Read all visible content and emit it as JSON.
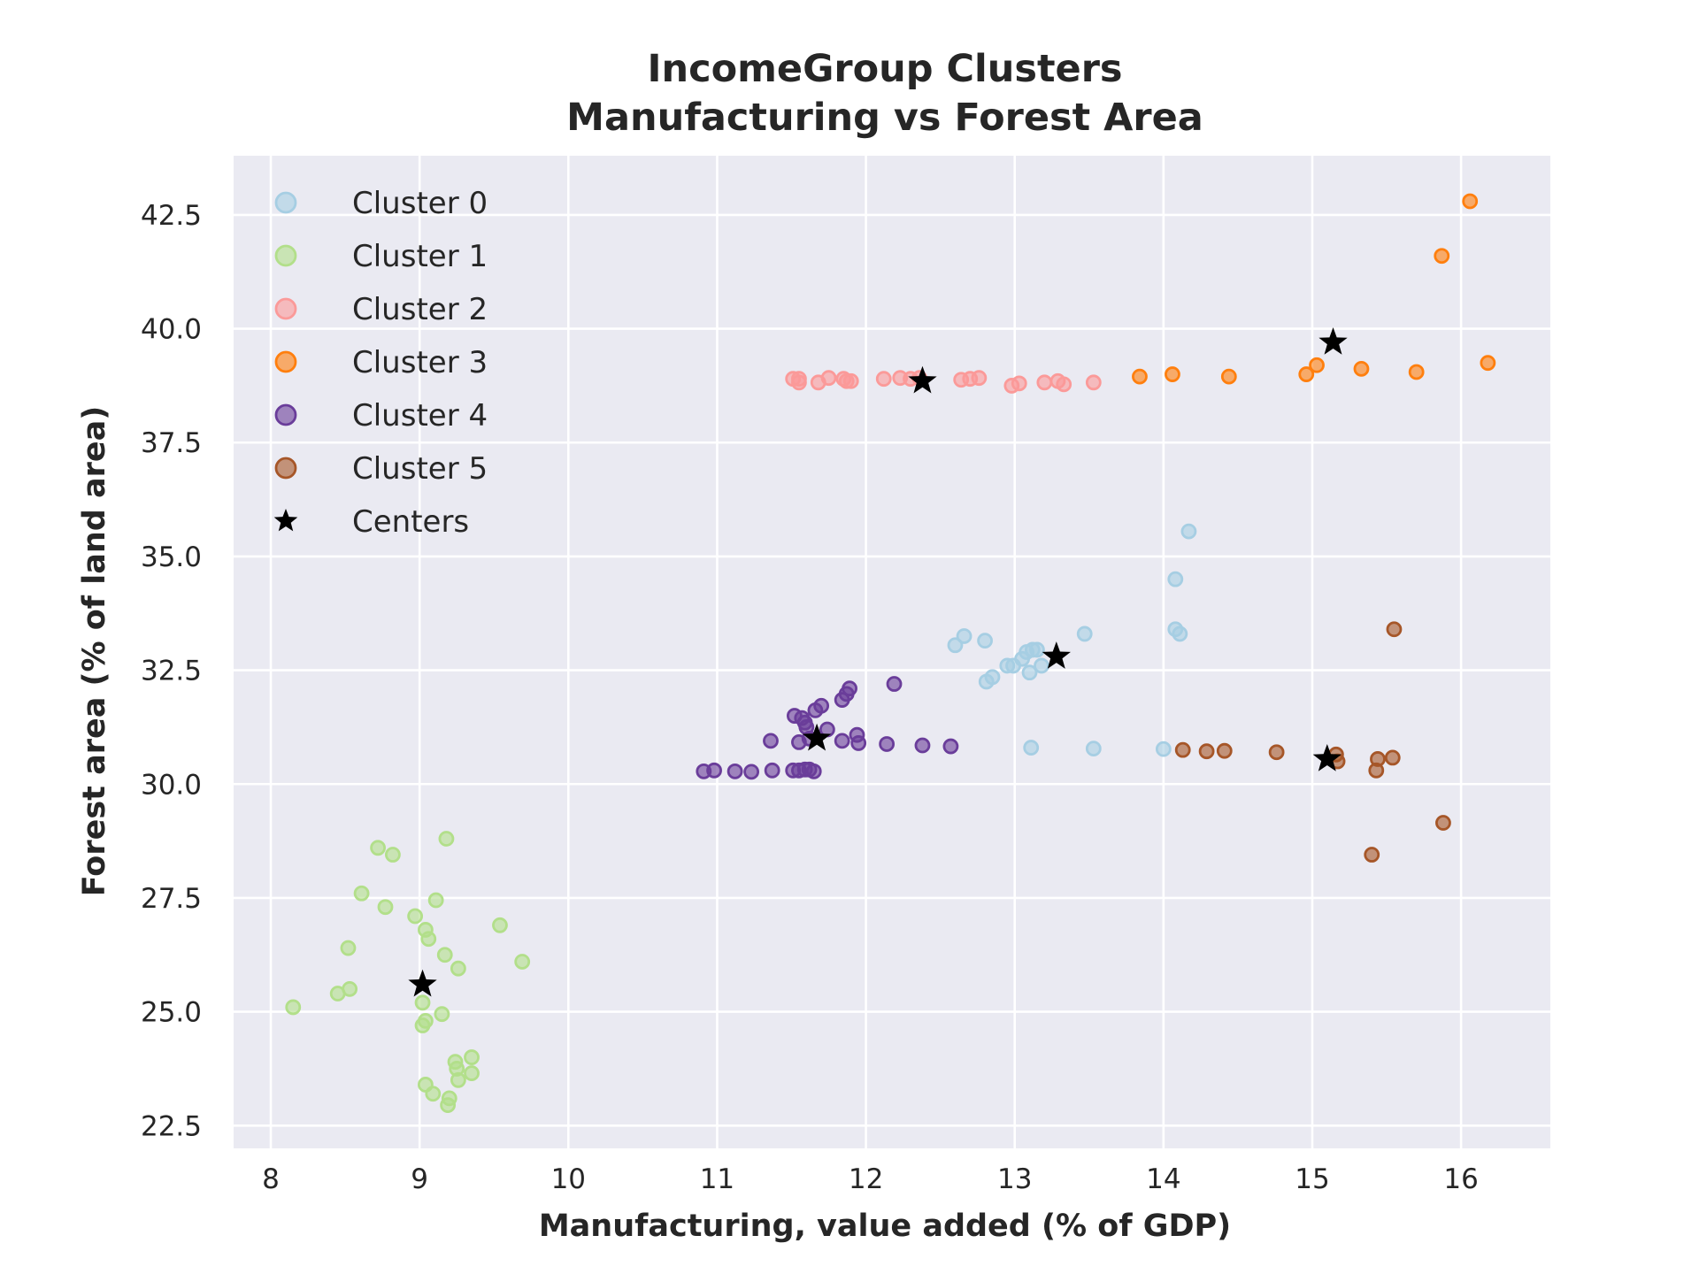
{
  "chart_data": {
    "type": "scatter",
    "title": [
      "IncomeGroup Clusters",
      "Manufacturing vs Forest Area"
    ],
    "xlabel": "Manufacturing, value added (% of GDP)",
    "ylabel": "Forest area (% of land area)",
    "xlim": [
      7.75,
      16.6
    ],
    "ylim": [
      22.0,
      43.8
    ],
    "xticks": [
      8,
      9,
      10,
      11,
      12,
      13,
      14,
      15,
      16
    ],
    "yticks": [
      22.5,
      25.0,
      27.5,
      30.0,
      32.5,
      35.0,
      37.5,
      40.0,
      42.5
    ],
    "xtick_labels": [
      "8",
      "9",
      "10",
      "11",
      "12",
      "13",
      "14",
      "15",
      "16"
    ],
    "ytick_labels": [
      "22.5",
      "25.0",
      "27.5",
      "30.0",
      "32.5",
      "35.0",
      "37.5",
      "40.0",
      "42.5"
    ],
    "grid": true,
    "background": "#eaeaf2",
    "legend_position": "top-left",
    "series": [
      {
        "name": "Cluster 0",
        "color": "#a6cee3",
        "points": [
          [
            12.6,
            33.05
          ],
          [
            12.66,
            33.25
          ],
          [
            12.8,
            33.15
          ],
          [
            12.81,
            32.25
          ],
          [
            12.85,
            32.35
          ],
          [
            12.95,
            32.6
          ],
          [
            12.99,
            32.6
          ],
          [
            13.05,
            32.75
          ],
          [
            13.08,
            32.9
          ],
          [
            13.1,
            32.45
          ],
          [
            13.12,
            32.95
          ],
          [
            13.15,
            32.95
          ],
          [
            13.18,
            32.6
          ],
          [
            13.47,
            33.3
          ],
          [
            14.08,
            33.4
          ],
          [
            14.11,
            33.3
          ],
          [
            14.08,
            34.5
          ],
          [
            14.17,
            35.55
          ],
          [
            13.11,
            30.8
          ],
          [
            13.53,
            30.78
          ],
          [
            14.0,
            30.77
          ]
        ]
      },
      {
        "name": "Cluster 1",
        "color": "#b2df8a",
        "points": [
          [
            8.15,
            25.1
          ],
          [
            8.45,
            25.4
          ],
          [
            8.53,
            25.5
          ],
          [
            8.52,
            26.4
          ],
          [
            8.61,
            27.6
          ],
          [
            8.72,
            28.6
          ],
          [
            8.77,
            27.3
          ],
          [
            8.82,
            28.45
          ],
          [
            8.97,
            27.1
          ],
          [
            9.02,
            25.2
          ],
          [
            9.02,
            24.7
          ],
          [
            9.04,
            24.8
          ],
          [
            9.04,
            26.8
          ],
          [
            9.06,
            26.6
          ],
          [
            9.11,
            27.45
          ],
          [
            9.15,
            24.95
          ],
          [
            9.17,
            26.25
          ],
          [
            9.18,
            28.8
          ],
          [
            9.26,
            25.95
          ],
          [
            9.04,
            23.4
          ],
          [
            9.09,
            23.2
          ],
          [
            9.19,
            22.95
          ],
          [
            9.2,
            23.1
          ],
          [
            9.24,
            23.9
          ],
          [
            9.25,
            23.75
          ],
          [
            9.26,
            23.5
          ],
          [
            9.35,
            24.0
          ],
          [
            9.35,
            23.65
          ],
          [
            9.54,
            26.9
          ],
          [
            9.69,
            26.1
          ]
        ]
      },
      {
        "name": "Cluster 2",
        "color": "#fb9a99",
        "points": [
          [
            11.51,
            38.9
          ],
          [
            11.55,
            38.82
          ],
          [
            11.55,
            38.9
          ],
          [
            11.68,
            38.82
          ],
          [
            11.75,
            38.92
          ],
          [
            11.85,
            38.9
          ],
          [
            11.87,
            38.85
          ],
          [
            11.9,
            38.85
          ],
          [
            12.12,
            38.9
          ],
          [
            12.23,
            38.92
          ],
          [
            12.3,
            38.9
          ],
          [
            12.36,
            38.92
          ],
          [
            12.64,
            38.88
          ],
          [
            12.7,
            38.9
          ],
          [
            12.76,
            38.92
          ],
          [
            12.98,
            38.75
          ],
          [
            13.03,
            38.8
          ],
          [
            13.2,
            38.82
          ],
          [
            13.29,
            38.85
          ],
          [
            13.33,
            38.78
          ],
          [
            13.53,
            38.82
          ]
        ]
      },
      {
        "name": "Cluster 3",
        "color": "#ff7f0e",
        "points": [
          [
            13.84,
            38.95
          ],
          [
            14.06,
            39.0
          ],
          [
            14.44,
            38.95
          ],
          [
            14.96,
            39.0
          ],
          [
            15.03,
            39.2
          ],
          [
            15.33,
            39.12
          ],
          [
            15.7,
            39.05
          ],
          [
            16.18,
            39.25
          ],
          [
            15.87,
            41.6
          ],
          [
            16.06,
            42.8
          ]
        ]
      },
      {
        "name": "Cluster 4",
        "color": "#6a3d9a",
        "points": [
          [
            10.91,
            30.28
          ],
          [
            10.98,
            30.3
          ],
          [
            11.12,
            30.28
          ],
          [
            11.23,
            30.27
          ],
          [
            11.37,
            30.3
          ],
          [
            11.36,
            30.95
          ],
          [
            11.51,
            30.3
          ],
          [
            11.55,
            30.3
          ],
          [
            11.59,
            30.32
          ],
          [
            11.62,
            30.32
          ],
          [
            11.65,
            30.28
          ],
          [
            11.52,
            31.5
          ],
          [
            11.57,
            31.45
          ],
          [
            11.59,
            31.35
          ],
          [
            11.6,
            31.25
          ],
          [
            11.55,
            30.92
          ],
          [
            11.62,
            31.0
          ],
          [
            11.66,
            31.62
          ],
          [
            11.7,
            31.72
          ],
          [
            11.74,
            31.2
          ],
          [
            11.84,
            31.85
          ],
          [
            11.87,
            31.98
          ],
          [
            11.89,
            32.1
          ],
          [
            11.84,
            30.95
          ],
          [
            11.94,
            31.08
          ],
          [
            11.95,
            30.9
          ],
          [
            12.14,
            30.88
          ],
          [
            12.19,
            32.2
          ],
          [
            12.38,
            30.85
          ],
          [
            12.57,
            30.83
          ]
        ]
      },
      {
        "name": "Cluster 5",
        "color": "#a65628",
        "points": [
          [
            14.13,
            30.75
          ],
          [
            14.29,
            30.72
          ],
          [
            14.41,
            30.73
          ],
          [
            14.76,
            30.7
          ],
          [
            15.16,
            30.65
          ],
          [
            15.17,
            30.5
          ],
          [
            15.43,
            30.3
          ],
          [
            15.44,
            30.55
          ],
          [
            15.54,
            30.58
          ],
          [
            15.55,
            33.4
          ],
          [
            15.4,
            28.45
          ],
          [
            15.88,
            29.15
          ]
        ]
      }
    ],
    "centers": {
      "name": "Centers",
      "color": "#000000",
      "points": [
        [
          9.02,
          25.6
        ],
        [
          11.67,
          31.0
        ],
        [
          12.38,
          38.85
        ],
        [
          13.28,
          32.8
        ],
        [
          15.1,
          30.55
        ],
        [
          15.14,
          39.7
        ]
      ]
    }
  }
}
